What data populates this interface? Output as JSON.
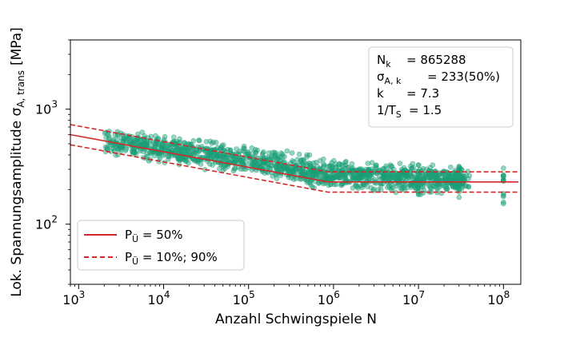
{
  "chart_data": {
    "type": "scatter",
    "xlabel": "Anzahl Schwingspiele N",
    "ylabel_main": "Lok. Spannungsamplitude σ",
    "ylabel_sub": "A, trans",
    "ylabel_unit": "[MPa]",
    "xscale": "log",
    "yscale": "log",
    "xlim": [
      800,
      160000000
    ],
    "ylim": [
      30,
      4000
    ],
    "x_ticks": [
      {
        "value": 1000,
        "base": "10",
        "exp": "3"
      },
      {
        "value": 10000,
        "base": "10",
        "exp": "4"
      },
      {
        "value": 100000,
        "base": "10",
        "exp": "5"
      },
      {
        "value": 1000000,
        "base": "10",
        "exp": "6"
      },
      {
        "value": 10000000,
        "base": "10",
        "exp": "7"
      },
      {
        "value": 100000000,
        "base": "10",
        "exp": "8"
      }
    ],
    "y_ticks": [
      {
        "value": 100,
        "base": "10",
        "exp": "2"
      },
      {
        "value": 1000,
        "base": "10",
        "exp": "3"
      }
    ],
    "scatter_color": "#1b9e77",
    "line_color": "#d62728",
    "scatter_band": {
      "x_range": [
        2000,
        40000000
      ],
      "center_at": [
        [
          2000,
          530
        ],
        [
          20000,
          420
        ],
        [
          200000,
          330
        ],
        [
          865288,
          270
        ],
        [
          40000000,
          240
        ]
      ],
      "spread_factor": 1.45,
      "extra_columns_x": [
        10000000,
        30000000,
        100000000
      ]
    },
    "lines": [
      {
        "name": "P_Ü = 50%",
        "style": "solid",
        "x": [
          800,
          865288,
          150000000
        ],
        "y": [
          600,
          233,
          233
        ]
      },
      {
        "name": "P_Ü = 10%",
        "style": "dashed",
        "x": [
          800,
          865288,
          150000000
        ],
        "y": [
          735,
          285,
          285
        ]
      },
      {
        "name": "P_Ü = 90%",
        "style": "dashed",
        "x": [
          800,
          865288,
          150000000
        ],
        "y": [
          490,
          190,
          190
        ]
      }
    ],
    "annotation": {
      "rows": [
        {
          "sym": "N",
          "sub": "k",
          "val": "= 865288"
        },
        {
          "sym": "σ",
          "sub": "A, k",
          "val": "= 233(50%)"
        },
        {
          "sym": "k",
          "sub": "",
          "val": "= 7.3"
        },
        {
          "sym": "1/T",
          "sub": "S",
          "val": "= 1.5"
        }
      ]
    },
    "legend": {
      "position": "lower-left",
      "entries": [
        {
          "prefix": "P",
          "sub": "Ü",
          "text": " = 50%",
          "style": "solid"
        },
        {
          "prefix": "P",
          "sub": "Ü",
          "text": " = 10%; 90%",
          "style": "dashed"
        }
      ]
    },
    "grid": false
  }
}
